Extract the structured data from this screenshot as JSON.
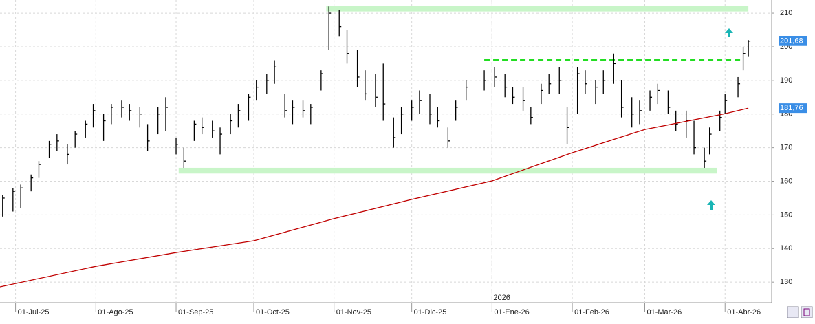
{
  "chart_data": {
    "type": "ohlc",
    "color": "#000000",
    "grid": true,
    "x": [
      "2025-06-26",
      "2025-06-30",
      "2025-07-03",
      "2025-07-07",
      "2025-07-10",
      "2025-07-14",
      "2025-07-17",
      "2025-07-21",
      "2025-07-24",
      "2025-07-28",
      "2025-07-31",
      "2025-08-04",
      "2025-08-07",
      "2025-08-11",
      "2025-08-14",
      "2025-08-18",
      "2025-08-21",
      "2025-08-25",
      "2025-08-28",
      "2025-09-01",
      "2025-09-04",
      "2025-09-08",
      "2025-09-11",
      "2025-09-15",
      "2025-09-18",
      "2025-09-22",
      "2025-09-25",
      "2025-09-29",
      "2025-10-02",
      "2025-10-06",
      "2025-10-09",
      "2025-10-13",
      "2025-10-16",
      "2025-10-20",
      "2025-10-23",
      "2025-10-27",
      "2025-10-30",
      "2025-11-03",
      "2025-11-06",
      "2025-11-10",
      "2025-11-13",
      "2025-11-17",
      "2025-11-20",
      "2025-11-24",
      "2025-11-27",
      "2025-12-01",
      "2025-12-04",
      "2025-12-08",
      "2025-12-11",
      "2025-12-15",
      "2025-12-18",
      "2025-12-22",
      "2025-12-29",
      "2026-01-02",
      "2026-01-06",
      "2026-01-09",
      "2026-01-13",
      "2026-01-16",
      "2026-01-20",
      "2026-01-23",
      "2026-01-27",
      "2026-01-30",
      "2026-02-03",
      "2026-02-06",
      "2026-02-10",
      "2026-02-13",
      "2026-02-17",
      "2026-02-20",
      "2026-02-24",
      "2026-02-27",
      "2026-03-03",
      "2026-03-06",
      "2026-03-10",
      "2026-03-13",
      "2026-03-17",
      "2026-03-20",
      "2026-03-24",
      "2026-03-26",
      "2026-03-30",
      "2026-04-01",
      "2026-04-06",
      "2026-04-08",
      "2026-04-10"
    ],
    "low": [
      149.5,
      151,
      152,
      157,
      161,
      167,
      169,
      165,
      170,
      173,
      176,
      172,
      177,
      179,
      178,
      176,
      169,
      174,
      175,
      168,
      164,
      172,
      174,
      173,
      168,
      174,
      176,
      178,
      184,
      186,
      189,
      179,
      177,
      179,
      177,
      187,
      199,
      203,
      195,
      188,
      184,
      182,
      178,
      170,
      174,
      178,
      180,
      177,
      176,
      170,
      178,
      184,
      187,
      188,
      185,
      183,
      181,
      177,
      183,
      186,
      186,
      171,
      180,
      186,
      183,
      186,
      189,
      179,
      176,
      177,
      181,
      183,
      180,
      175,
      173,
      168,
      164,
      168,
      175,
      180,
      185,
      193,
      197
    ],
    "high": [
      156,
      158,
      159,
      162,
      166,
      172,
      174,
      171,
      175,
      178,
      183,
      180,
      183,
      184,
      183,
      182,
      177,
      182,
      185,
      173,
      170,
      178,
      179,
      178,
      176,
      180,
      183,
      186,
      190,
      192,
      196,
      186,
      184,
      184,
      183,
      193,
      212,
      211,
      205,
      199,
      193,
      192,
      195,
      179,
      182,
      184,
      187,
      186,
      182,
      176,
      184,
      190,
      193,
      194,
      192,
      188,
      188,
      182,
      189,
      192,
      194,
      182,
      194,
      193,
      190,
      193,
      198,
      190,
      185,
      184,
      187,
      189,
      187,
      181,
      181,
      178,
      170,
      176,
      181,
      186,
      191,
      200,
      202
    ],
    "close": [
      155,
      157,
      158,
      161,
      165,
      171,
      172,
      168,
      174,
      177,
      181,
      178,
      182,
      182,
      181,
      180,
      172,
      180,
      182,
      171,
      166,
      177,
      176,
      175,
      174,
      178,
      181,
      185,
      188,
      190,
      194,
      181,
      182,
      181,
      182,
      192,
      210,
      206,
      198,
      191,
      186,
      185,
      183,
      173,
      180,
      182,
      184,
      180,
      178,
      172,
      182,
      188,
      190,
      191,
      188,
      185,
      184,
      179,
      187,
      189,
      190,
      176,
      192,
      189,
      188,
      190,
      195,
      182,
      180,
      181,
      185,
      187,
      182,
      177,
      178,
      170,
      166,
      174,
      179,
      184,
      189,
      198,
      201.68
    ],
    "ma": {
      "color": "#c00000",
      "x": [
        "2025-06-25",
        "2025-08-01",
        "2025-09-01",
        "2025-10-01",
        "2025-11-01",
        "2025-12-01",
        "2026-01-01",
        "2026-02-01",
        "2026-03-01",
        "2026-04-01",
        "2026-04-10"
      ],
      "values": [
        128.6,
        134.7,
        138.8,
        142.3,
        148.9,
        154.6,
        160.1,
        168.5,
        175.4,
        180.1,
        181.76
      ]
    },
    "zones": [
      {
        "x": [
          "2025-10-29",
          "2026-04-10"
        ],
        "y": [
          210.5,
          212.2
        ],
        "color": "#c8f5c8"
      },
      {
        "x": [
          "2025-09-02",
          "2026-03-29"
        ],
        "y": [
          162.3,
          164
        ],
        "color": "#c8f5c8"
      }
    ],
    "level": {
      "x": [
        "2025-12-29",
        "2026-04-08"
      ],
      "value": 196,
      "color": "#22dd22"
    },
    "price_labels": [
      {
        "value": 201.68,
        "label": "201,68"
      },
      {
        "value": 181.76,
        "label": "181,76"
      }
    ],
    "year_label": "2026",
    "xlim": [
      "2025-06-25",
      "2026-04-19"
    ],
    "xticks": [
      {
        "value": "2025-07-01",
        "label": "01-Jul-25"
      },
      {
        "value": "2025-08-01",
        "label": "01-Ago-25"
      },
      {
        "value": "2025-09-01",
        "label": "01-Sep-25"
      },
      {
        "value": "2025-10-01",
        "label": "01-Oct-25"
      },
      {
        "value": "2025-11-01",
        "label": "01-Nov-25"
      },
      {
        "value": "2025-12-01",
        "label": "01-Dic-25"
      },
      {
        "value": "2026-01-01",
        "label": "01-Ene-26"
      },
      {
        "value": "2026-02-01",
        "label": "01-Feb-26"
      },
      {
        "value": "2026-03-01",
        "label": "01-Mar-26"
      },
      {
        "value": "2026-04-01",
        "label": "01-Abr-26"
      }
    ],
    "ylim": [
      123.9,
      213.9
    ],
    "yticks": [
      130,
      140,
      150,
      160,
      170,
      180,
      190,
      200,
      210
    ]
  }
}
